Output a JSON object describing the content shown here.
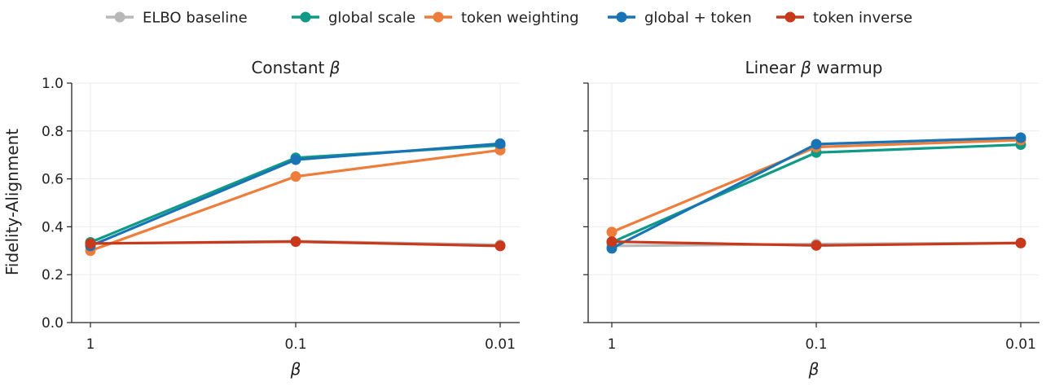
{
  "legend": [
    {
      "name": "ELBO baseline",
      "color": "#b8b8b8"
    },
    {
      "name": "global scale",
      "color": "#0e9a86"
    },
    {
      "name": "token weighting",
      "color": "#ee7d3c"
    },
    {
      "name": "global + token",
      "color": "#1874b5"
    },
    {
      "name": "token inverse",
      "color": "#c8381b"
    }
  ],
  "y_axis_label": "Fidelity-Alignment",
  "chart_data": [
    {
      "type": "line",
      "title_prefix": "Constant",
      "title_symbol": "β",
      "xlabel": "β",
      "ylabel": "Fidelity-Alignment",
      "categories": [
        "1",
        "0.1",
        "0.01"
      ],
      "ylim": [
        0,
        1
      ],
      "yticks": [
        "0.0",
        "0.2",
        "0.4",
        "0.6",
        "0.8",
        "1.0"
      ],
      "grid": true,
      "series": [
        {
          "name": "ELBO baseline",
          "color": "#b8b8b8",
          "values": [
            0.33,
            0.34,
            0.325
          ]
        },
        {
          "name": "global scale",
          "color": "#0e9a86",
          "values": [
            0.335,
            0.688,
            0.74
          ]
        },
        {
          "name": "token weighting",
          "color": "#ee7d3c",
          "values": [
            0.3,
            0.61,
            0.72
          ]
        },
        {
          "name": "global + token",
          "color": "#1874b5",
          "values": [
            0.32,
            0.68,
            0.747
          ]
        },
        {
          "name": "token inverse",
          "color": "#c8381b",
          "values": [
            0.33,
            0.338,
            0.32
          ]
        }
      ]
    },
    {
      "type": "line",
      "title_prefix": "Linear",
      "title_symbol": "β",
      "title_suffix": "warmup",
      "xlabel": "β",
      "ylabel": "",
      "categories": [
        "1",
        "0.1",
        "0.01"
      ],
      "ylim": [
        0,
        1
      ],
      "yticks": [
        "",
        "",
        "",
        "",
        "",
        ""
      ],
      "grid": true,
      "series": [
        {
          "name": "ELBO baseline",
          "color": "#b8b8b8",
          "values": [
            0.32,
            0.328,
            0.333
          ]
        },
        {
          "name": "global scale",
          "color": "#0e9a86",
          "values": [
            0.335,
            0.71,
            0.743
          ]
        },
        {
          "name": "token weighting",
          "color": "#ee7d3c",
          "values": [
            0.378,
            0.733,
            0.762
          ]
        },
        {
          "name": "global + token",
          "color": "#1874b5",
          "values": [
            0.31,
            0.745,
            0.772
          ]
        },
        {
          "name": "token inverse",
          "color": "#c8381b",
          "values": [
            0.338,
            0.322,
            0.332
          ]
        }
      ]
    }
  ]
}
